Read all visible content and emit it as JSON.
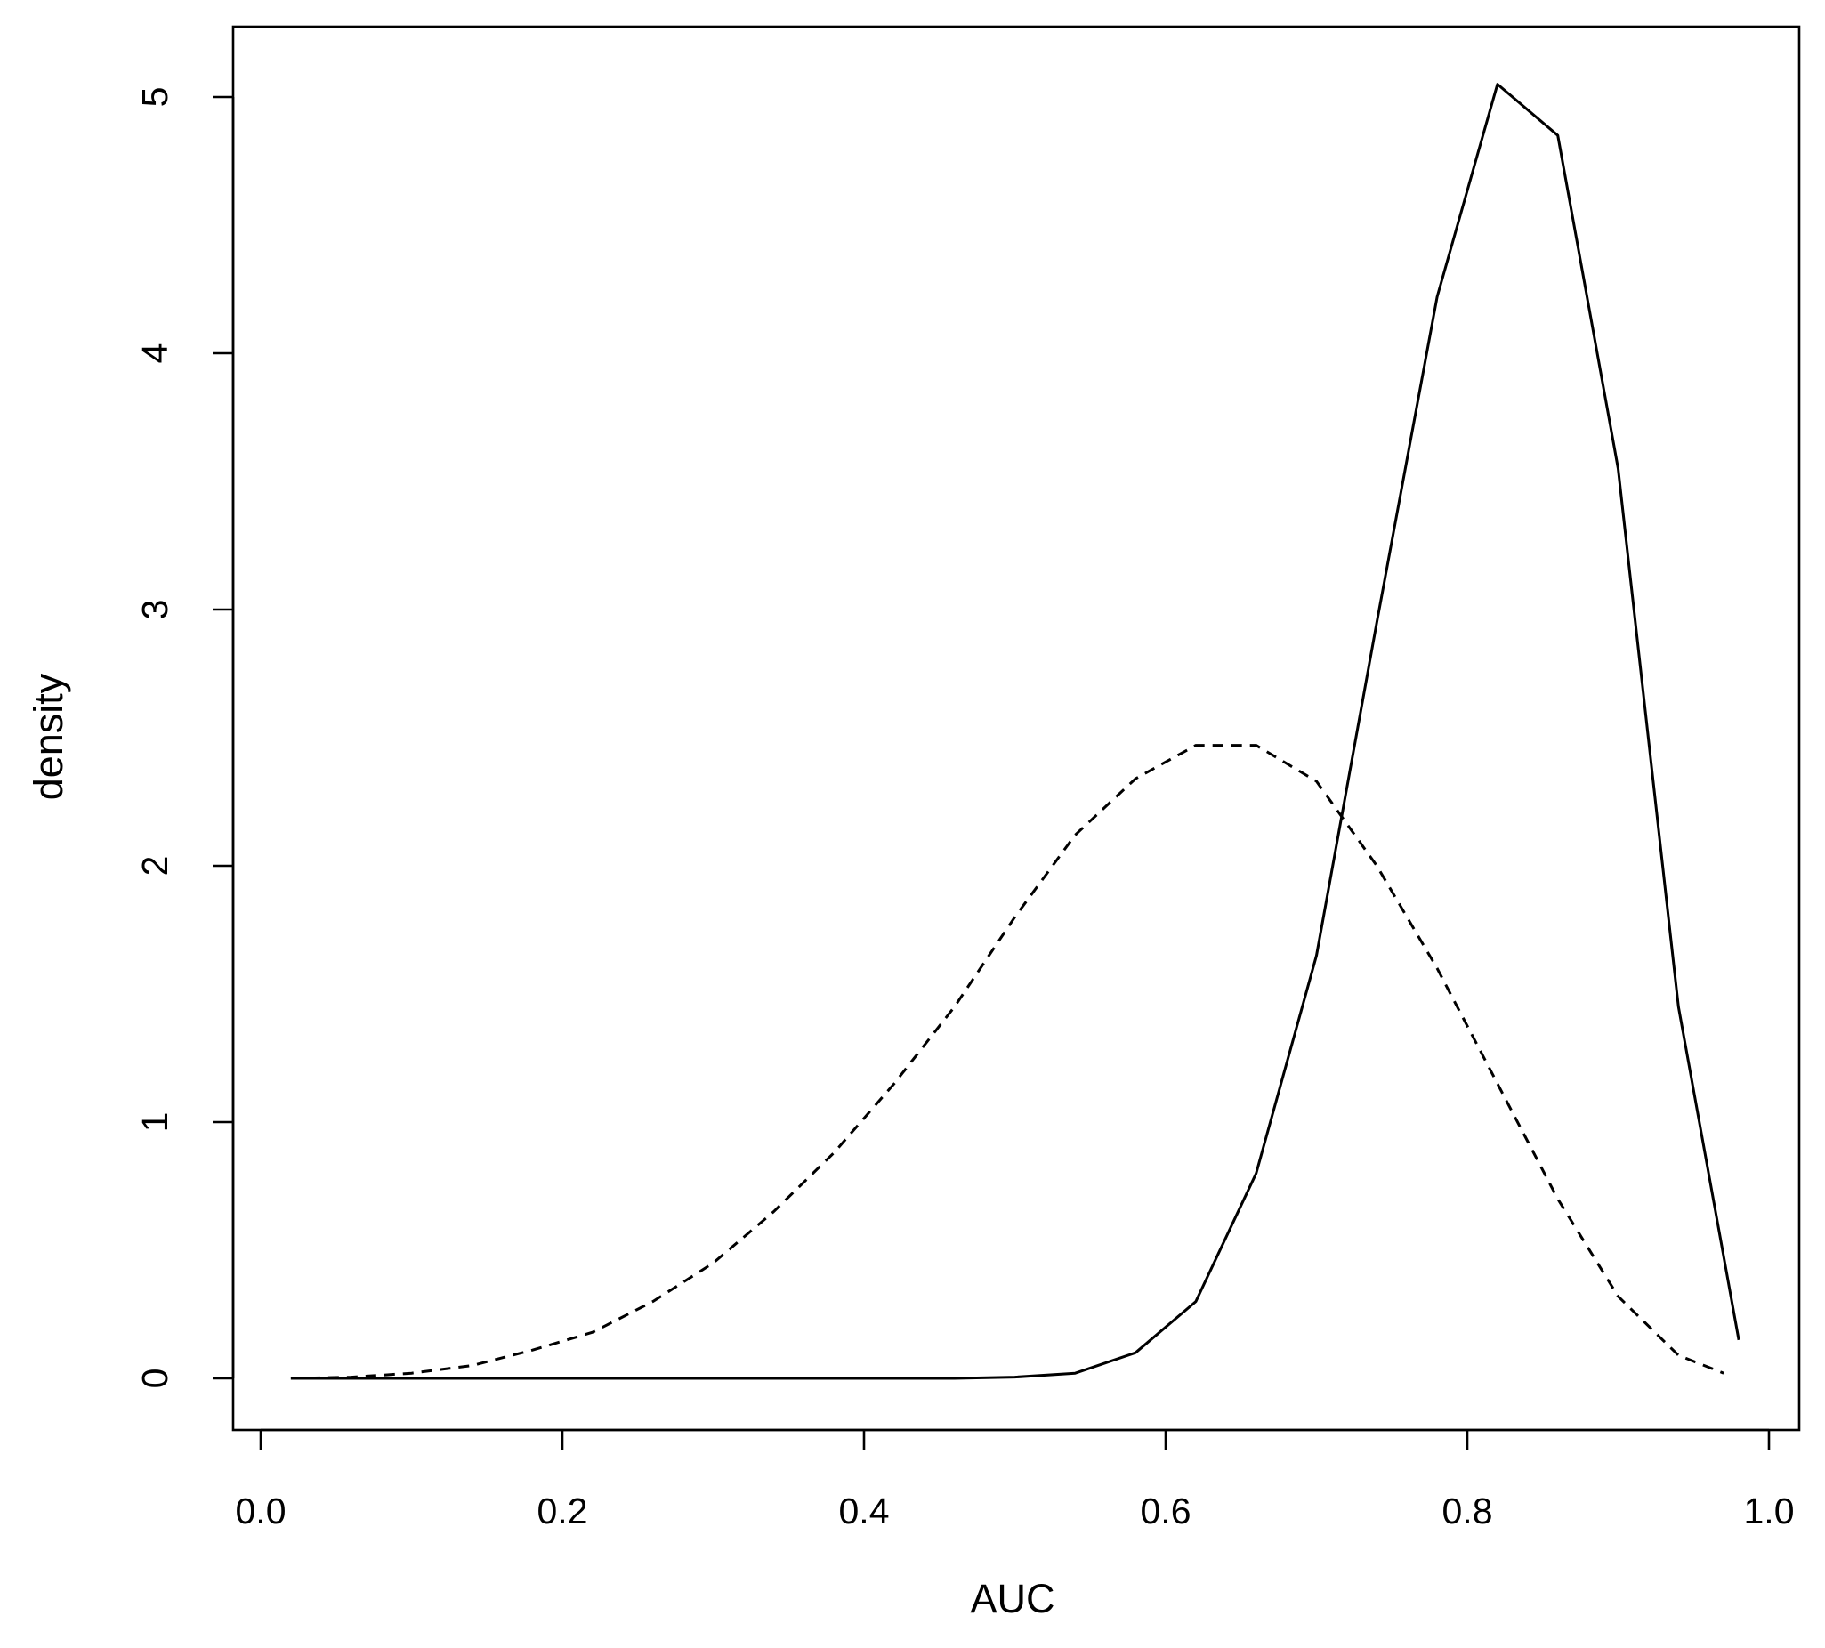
{
  "chart_data": {
    "type": "line",
    "title": "",
    "xlabel": "AUC",
    "ylabel": "density",
    "xlim": [
      0.0,
      1.0
    ],
    "ylim": [
      0,
      5
    ],
    "x_ticks": [
      "0.0",
      "0.2",
      "0.4",
      "0.6",
      "0.8",
      "1.0"
    ],
    "y_ticks": [
      "0",
      "1",
      "2",
      "3",
      "4",
      "5"
    ],
    "grid": false,
    "legend": "none",
    "series": [
      {
        "style": "solid",
        "color": "#000000",
        "x": [
          0.02,
          0.06,
          0.1,
          0.14,
          0.18,
          0.22,
          0.26,
          0.3,
          0.34,
          0.38,
          0.42,
          0.46,
          0.5,
          0.54,
          0.58,
          0.62,
          0.66,
          0.7,
          0.74,
          0.78,
          0.82,
          0.86,
          0.9,
          0.94,
          0.98
        ],
        "y": [
          0,
          0,
          0,
          0,
          0,
          0,
          0,
          0,
          0,
          0,
          0,
          0,
          0.005,
          0.02,
          0.1,
          0.3,
          0.8,
          1.65,
          2.95,
          4.22,
          5.05,
          4.85,
          3.55,
          1.45,
          0.15
        ]
      },
      {
        "style": "dashed",
        "color": "#000000",
        "x": [
          0.02,
          0.06,
          0.1,
          0.14,
          0.18,
          0.22,
          0.26,
          0.3,
          0.34,
          0.38,
          0.42,
          0.46,
          0.5,
          0.54,
          0.58,
          0.62,
          0.66,
          0.7,
          0.74,
          0.78,
          0.82,
          0.86,
          0.9,
          0.94,
          0.97
        ],
        "y": [
          0,
          0.005,
          0.02,
          0.05,
          0.11,
          0.18,
          0.3,
          0.45,
          0.65,
          0.88,
          1.15,
          1.45,
          1.8,
          2.12,
          2.34,
          2.47,
          2.47,
          2.33,
          2.0,
          1.6,
          1.15,
          0.7,
          0.32,
          0.09,
          0.02
        ]
      }
    ]
  }
}
